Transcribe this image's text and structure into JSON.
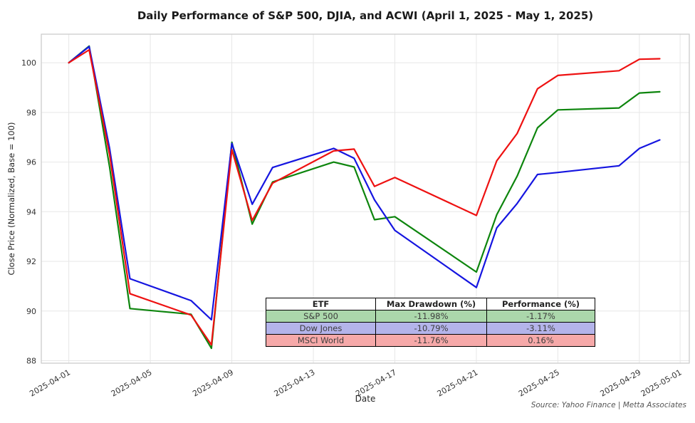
{
  "title": "Daily Performance of S&P 500, DJIA, and ACWI (April 1, 2025 - May 1, 2025)",
  "chart_data": {
    "type": "line",
    "x": [
      "2025-04-01",
      "2025-04-02",
      "2025-04-03",
      "2025-04-04",
      "2025-04-07",
      "2025-04-08",
      "2025-04-09",
      "2025-04-10",
      "2025-04-11",
      "2025-04-14",
      "2025-04-15",
      "2025-04-16",
      "2025-04-17",
      "2025-04-21",
      "2025-04-22",
      "2025-04-23",
      "2025-04-24",
      "2025-04-25",
      "2025-04-28",
      "2025-04-29",
      "2025-04-30"
    ],
    "series": [
      {
        "name": "S&P 500",
        "color": "#0d850d",
        "values": [
          100.0,
          100.67,
          95.8,
          90.1,
          89.87,
          88.5,
          96.8,
          93.5,
          95.2,
          96.0,
          95.8,
          93.68,
          93.8,
          91.57,
          93.88,
          95.43,
          97.38,
          98.1,
          98.18,
          98.78,
          98.83
        ]
      },
      {
        "name": "Dow Jones",
        "color": "#1515e0",
        "values": [
          100.0,
          100.65,
          96.55,
          91.3,
          90.42,
          89.65,
          96.75,
          94.3,
          95.78,
          96.55,
          96.15,
          94.48,
          93.25,
          90.95,
          93.35,
          94.33,
          95.5,
          95.58,
          95.85,
          96.55,
          96.89
        ]
      },
      {
        "name": "MSCI World",
        "color": "#ee1111",
        "values": [
          100.0,
          100.52,
          96.3,
          90.7,
          89.84,
          88.64,
          96.5,
          93.65,
          95.15,
          96.45,
          96.52,
          95.02,
          95.38,
          93.85,
          96.05,
          97.15,
          98.95,
          99.49,
          99.68,
          100.14,
          100.16
        ]
      }
    ],
    "xlabel": "Date",
    "ylabel": "Close Price (Normalized, Base = 100)",
    "yticks": [
      88,
      90,
      92,
      94,
      96,
      98,
      100
    ],
    "xticks": [
      "2025-04-01",
      "2025-04-05",
      "2025-04-09",
      "2025-04-13",
      "2025-04-17",
      "2025-04-21",
      "2025-04-25",
      "2025-04-29",
      "2025-05-01"
    ],
    "ylim": [
      87.9,
      101.15
    ],
    "xlim_days": [
      -1.35,
      30.45
    ],
    "grid": true,
    "legend_position": "none (inset summary table instead)"
  },
  "table": {
    "headers": [
      "ETF",
      "Max Drawdown (%)",
      "Performance (%)"
    ],
    "rows": [
      {
        "etf": "S&P 500",
        "max_drawdown": "-11.98%",
        "performance": "-1.17%",
        "row_color": "#abd7ab"
      },
      {
        "etf": "Dow Jones",
        "max_drawdown": "-10.79%",
        "performance": "-3.11%",
        "row_color": "#b4b4ea"
      },
      {
        "etf": "MSCI World",
        "max_drawdown": "-11.76%",
        "performance": "0.16%",
        "row_color": "#f6a9a9"
      }
    ]
  },
  "source_note": "Source: Yahoo Finance | Metta Associates",
  "style": {
    "grid_color": "#e7e7e7",
    "spine_color": "#c9c9c9",
    "tick_label_color": "#333333"
  }
}
